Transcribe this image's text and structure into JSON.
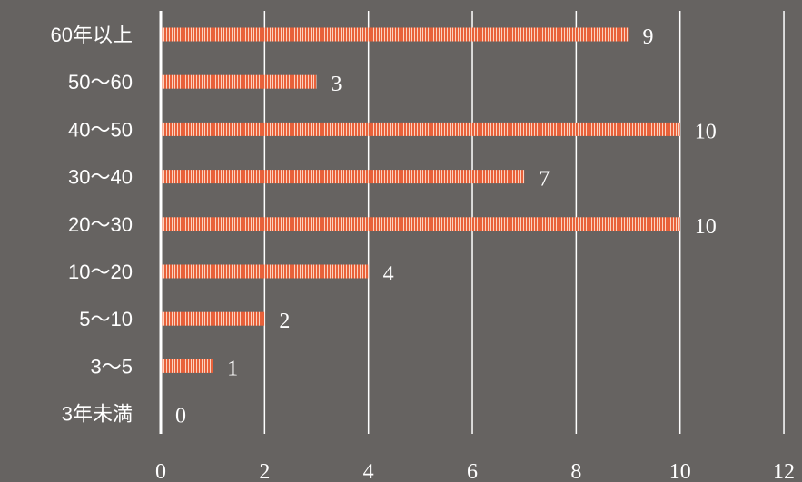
{
  "chart_data": {
    "type": "bar",
    "orientation": "horizontal",
    "title": "",
    "xlabel": "",
    "ylabel": "",
    "categories": [
      "60年以上",
      "50〜60",
      "40〜50",
      "30〜40",
      "20〜30",
      "10〜20",
      "5〜10",
      "3〜5",
      "3年未満"
    ],
    "values": [
      9,
      3,
      10,
      7,
      10,
      4,
      2,
      1,
      0
    ],
    "xlim": [
      0,
      12
    ],
    "xticks": [
      0,
      2,
      4,
      6,
      8,
      10,
      12
    ],
    "grid": true,
    "bar_color": "#e8613a",
    "bar_stripe_color": "#fbd3c0"
  }
}
